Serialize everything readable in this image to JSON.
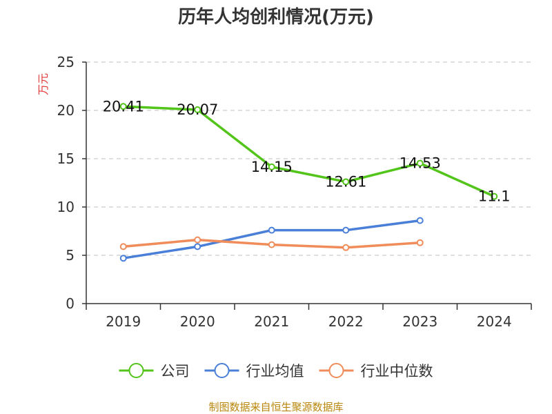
{
  "chart_data": {
    "type": "line",
    "title": "历年人均创利情况(万元)",
    "ylabel": "万元",
    "xlabel": "",
    "categories": [
      "2019",
      "2020",
      "2021",
      "2022",
      "2023",
      "2024"
    ],
    "ylim": [
      0,
      25
    ],
    "yticks": [
      0,
      5,
      10,
      15,
      20,
      25
    ],
    "grid": true,
    "legend_position": "bottom",
    "series": [
      {
        "name": "公司",
        "color": "#52c41a",
        "values": [
          20.41,
          20.07,
          14.15,
          12.61,
          14.53,
          11.1
        ],
        "data_labels": [
          "20.41",
          "20.07",
          "14.15",
          "12.61",
          "14.53",
          "11.1"
        ]
      },
      {
        "name": "行业均值",
        "color": "#4a7fd8",
        "values": [
          4.7,
          5.9,
          7.6,
          7.6,
          8.6,
          null
        ]
      },
      {
        "name": "行业中位数",
        "color": "#f08c5a",
        "values": [
          5.9,
          6.6,
          6.1,
          5.8,
          6.3,
          null
        ]
      }
    ]
  },
  "source": "制图数据来自恒生聚源数据库"
}
